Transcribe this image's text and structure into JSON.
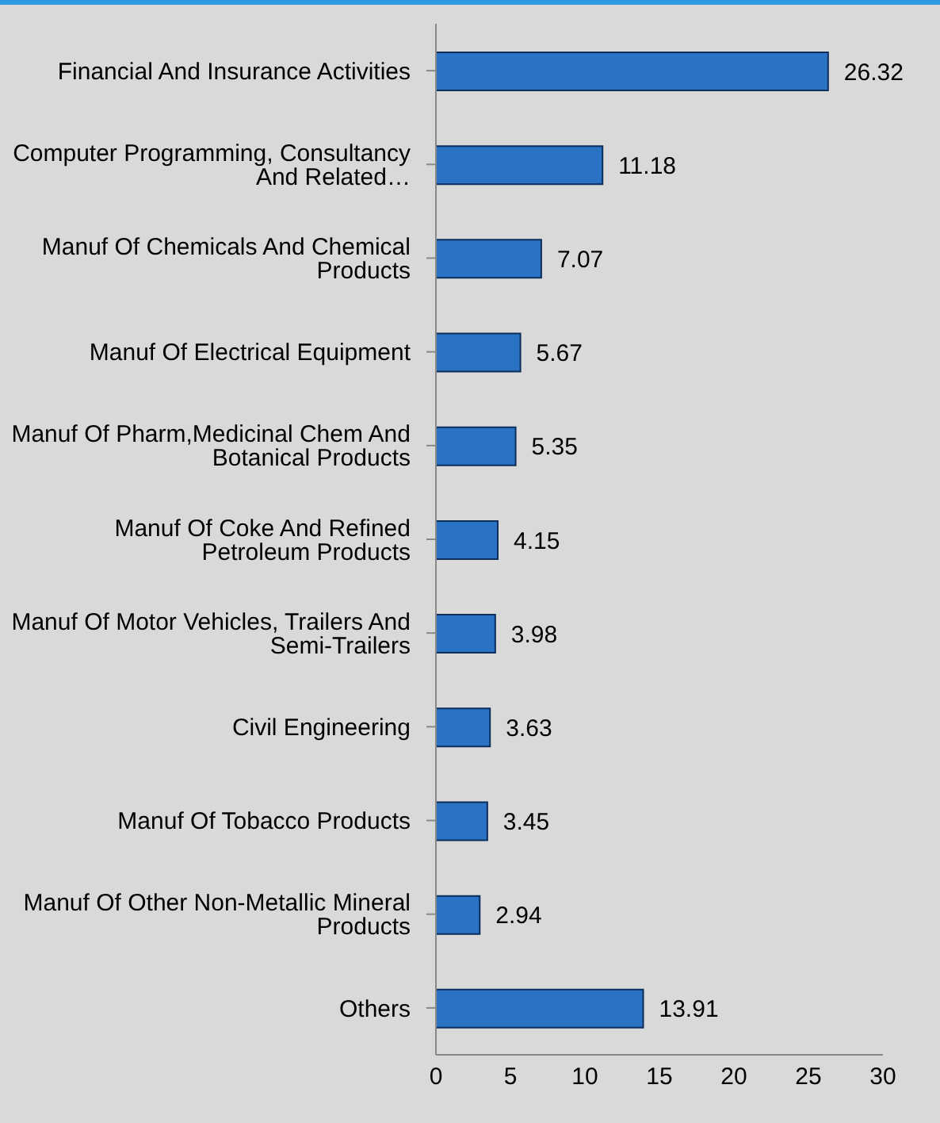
{
  "chart_data": {
    "type": "bar",
    "orientation": "horizontal",
    "categories": [
      "Financial And Insurance Activities",
      "Computer Programming, Consultancy And Related…",
      "Manuf Of Chemicals And Chemical Products",
      "Manuf Of Electrical Equipment",
      "Manuf Of Pharm,Medicinal Chem And Botanical Products",
      "Manuf Of Coke And Refined Petroleum Products",
      "Manuf Of Motor Vehicles, Trailers And Semi-Trailers",
      "Civil Engineering",
      "Manuf Of Tobacco Products",
      "Manuf Of Other Non-Metallic Mineral Products",
      "Others"
    ],
    "values": [
      26.32,
      11.18,
      7.07,
      5.67,
      5.35,
      4.15,
      3.98,
      3.63,
      3.45,
      2.94,
      13.91
    ],
    "color": "#2a72c4",
    "xlim": [
      0,
      30
    ],
    "xticks": [
      0,
      5,
      10,
      15,
      20,
      25,
      30
    ],
    "data_labels": true,
    "grid": false
  }
}
